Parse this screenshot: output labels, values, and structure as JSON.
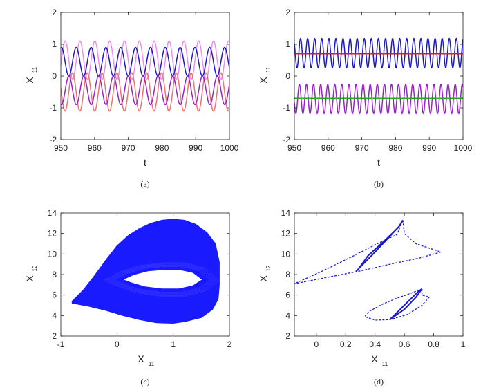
{
  "chart_data": [
    {
      "id": "a",
      "type": "line",
      "caption": "(a)",
      "xlabel": "t",
      "ylabel_main": "X",
      "ylabel_sub": "11",
      "xlim": [
        950,
        1000
      ],
      "ylim": [
        -2,
        2
      ],
      "xticks": [
        950,
        960,
        970,
        980,
        990,
        1000
      ],
      "yticks": [
        -2,
        -1,
        0,
        1,
        2
      ],
      "series": [
        {
          "color": "#f08cf0",
          "mean": 0.5,
          "amplitude": 0.6,
          "period": 4.4,
          "phase": 0.3
        },
        {
          "color": "#1a1acc",
          "mean": 0.45,
          "amplitude": 0.45,
          "period": 4.4,
          "phase": 1.9
        },
        {
          "color": "#f07070",
          "mean": -0.5,
          "amplitude": 0.6,
          "period": 4.4,
          "phase": 3.5
        },
        {
          "color": "#9922cc",
          "mean": -0.45,
          "amplitude": 0.45,
          "period": 4.4,
          "phase": 5.0
        }
      ]
    },
    {
      "id": "b",
      "type": "line",
      "caption": "(b)",
      "xlabel": "t",
      "ylabel_main": "X",
      "ylabel_sub": "11",
      "xlim": [
        950,
        1000
      ],
      "ylim": [
        -2,
        2
      ],
      "xticks": [
        950,
        960,
        970,
        980,
        990,
        1000
      ],
      "yticks": [
        -2,
        -1,
        0,
        1,
        2
      ],
      "series": [
        {
          "color": "#1a1acc",
          "mean": 0.72,
          "amplitude": 0.46,
          "period": 2.1,
          "phase": 0.0
        },
        {
          "color": "#cc2222",
          "mean": 0.7,
          "amplitude": 0.0,
          "period": 2.1,
          "phase": 0.0
        },
        {
          "color": "#9922cc",
          "mean": -0.72,
          "amplitude": 0.46,
          "period": 2.1,
          "phase": 1.0
        },
        {
          "color": "#22aa22",
          "mean": -0.7,
          "amplitude": 0.0,
          "period": 2.1,
          "phase": 0.0
        }
      ]
    },
    {
      "id": "c",
      "type": "scatter",
      "caption": "(c)",
      "xlabel_main": "X",
      "xlabel_sub": "11",
      "ylabel_main": "X",
      "ylabel_sub": "12",
      "xlim": [
        -1,
        2
      ],
      "ylim": [
        2,
        14
      ],
      "xticks": [
        -1,
        0,
        1,
        2
      ],
      "yticks": [
        2,
        4,
        6,
        8,
        10,
        12,
        14
      ],
      "color": "#1a1aff",
      "outer_boundary": [
        [
          -0.8,
          5.4
        ],
        [
          -0.6,
          6.5
        ],
        [
          -0.4,
          7.9
        ],
        [
          -0.2,
          9.4
        ],
        [
          0.0,
          10.8
        ],
        [
          0.2,
          11.8
        ],
        [
          0.4,
          12.5
        ],
        [
          0.6,
          13.0
        ],
        [
          0.8,
          13.3
        ],
        [
          1.0,
          13.4
        ],
        [
          1.2,
          13.3
        ],
        [
          1.4,
          12.9
        ],
        [
          1.6,
          12.1
        ],
        [
          1.75,
          11.0
        ],
        [
          1.82,
          9.2
        ],
        [
          1.82,
          7.0
        ],
        [
          1.8,
          5.6
        ],
        [
          1.7,
          4.6
        ],
        [
          1.5,
          3.8
        ],
        [
          1.2,
          3.4
        ],
        [
          1.0,
          3.25
        ],
        [
          0.7,
          3.3
        ],
        [
          0.4,
          3.6
        ],
        [
          0.1,
          4.0
        ],
        [
          -0.2,
          4.5
        ],
        [
          -0.5,
          4.9
        ],
        [
          -0.8,
          5.2
        ]
      ],
      "inner_hole": [
        [
          0.1,
          7.5
        ],
        [
          0.3,
          8.0
        ],
        [
          0.55,
          8.35
        ],
        [
          0.85,
          8.5
        ],
        [
          1.1,
          8.5
        ],
        [
          1.35,
          8.2
        ],
        [
          1.52,
          7.5
        ],
        [
          1.35,
          6.9
        ],
        [
          1.1,
          6.6
        ],
        [
          0.8,
          6.6
        ],
        [
          0.5,
          6.8
        ],
        [
          0.25,
          7.2
        ]
      ]
    },
    {
      "id": "d",
      "type": "line",
      "caption": "(d)",
      "xlabel_main": "X",
      "xlabel_sub": "11",
      "ylabel_main": "X",
      "ylabel_sub": "12",
      "xlim": [
        -0.15,
        1
      ],
      "ylim": [
        2,
        14
      ],
      "xticks": [
        0,
        0.2,
        0.4,
        0.6,
        0.8,
        1
      ],
      "yticks": [
        2,
        4,
        6,
        8,
        10,
        12,
        14
      ],
      "color": "#1a1acc",
      "upper_solid": [
        [
          0.27,
          8.3
        ],
        [
          0.4,
          10.2
        ],
        [
          0.5,
          11.7
        ],
        [
          0.57,
          12.8
        ],
        [
          0.59,
          13.3
        ],
        [
          0.56,
          12.6
        ],
        [
          0.45,
          11.1
        ],
        [
          0.35,
          9.8
        ],
        [
          0.28,
          8.4
        ]
      ],
      "upper_dashed": [
        [
          0.59,
          13.3
        ],
        [
          0.6,
          12.0
        ],
        [
          0.68,
          11.0
        ],
        [
          0.85,
          10.2
        ],
        [
          0.7,
          9.6
        ],
        [
          0.5,
          9.0
        ],
        [
          0.3,
          8.35
        ],
        [
          0.1,
          7.8
        ],
        [
          -0.15,
          7.1
        ],
        [
          0.05,
          8.4
        ],
        [
          0.25,
          9.8
        ],
        [
          0.4,
          10.9
        ],
        [
          0.55,
          11.9
        ],
        [
          0.59,
          13.3
        ]
      ],
      "lower_solid": [
        [
          0.5,
          3.6
        ],
        [
          0.6,
          4.6
        ],
        [
          0.68,
          5.8
        ],
        [
          0.72,
          6.6
        ],
        [
          0.7,
          6.4
        ],
        [
          0.62,
          5.3
        ],
        [
          0.55,
          4.3
        ],
        [
          0.5,
          3.6
        ]
      ],
      "lower_dashed": [
        [
          0.72,
          6.6
        ],
        [
          0.72,
          6.0
        ],
        [
          0.77,
          5.8
        ],
        [
          0.72,
          5.0
        ],
        [
          0.62,
          4.1
        ],
        [
          0.5,
          3.6
        ],
        [
          0.4,
          3.55
        ],
        [
          0.33,
          3.9
        ],
        [
          0.36,
          4.4
        ],
        [
          0.45,
          5.1
        ],
        [
          0.55,
          5.7
        ],
        [
          0.65,
          6.2
        ],
        [
          0.72,
          6.6
        ]
      ]
    }
  ]
}
